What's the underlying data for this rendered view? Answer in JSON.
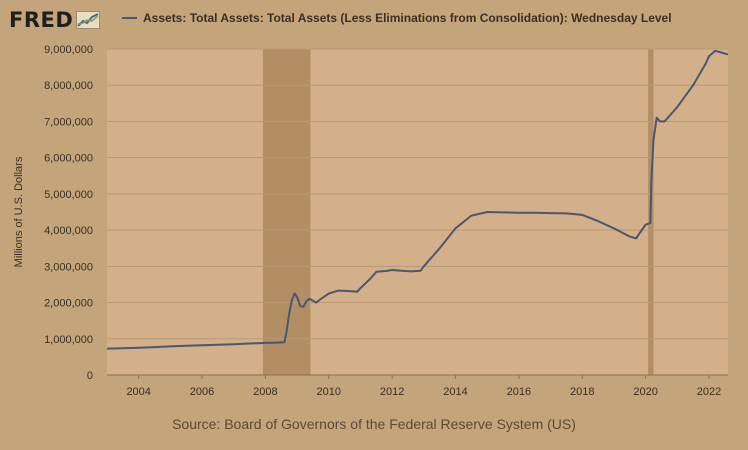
{
  "logo": {
    "text": "FRED",
    "icon": "trend-chart-icon"
  },
  "legend": {
    "label": "Assets: Total Assets: Total Assets (Less Eliminations from Consolidation): Wednesday Level"
  },
  "source": "Source: Board of Governors of the Federal Reserve System (US)",
  "colors": {
    "background": "#c4a47a",
    "plot_area": "#d3b08a",
    "recession": "#b38d63",
    "series": "#4a5770",
    "grid": "#b99a75"
  },
  "chart_data": {
    "type": "line",
    "title": "",
    "xlabel": "",
    "ylabel": "Millions of U.S. Dollars",
    "xlim": [
      2003.0,
      2022.6
    ],
    "ylim": [
      0,
      9000000
    ],
    "grid": true,
    "legend_position": "top",
    "y_ticks": [
      {
        "value": 0,
        "label": "0"
      },
      {
        "value": 1000000,
        "label": "1,000,000"
      },
      {
        "value": 2000000,
        "label": "2,000,000"
      },
      {
        "value": 3000000,
        "label": "3,000,000"
      },
      {
        "value": 4000000,
        "label": "4,000,000"
      },
      {
        "value": 5000000,
        "label": "5,000,000"
      },
      {
        "value": 6000000,
        "label": "6,000,000"
      },
      {
        "value": 7000000,
        "label": "7,000,000"
      },
      {
        "value": 8000000,
        "label": "8,000,000"
      },
      {
        "value": 9000000,
        "label": "9,000,000"
      }
    ],
    "x_ticks": [
      {
        "value": 2004,
        "label": "2004"
      },
      {
        "value": 2006,
        "label": "2006"
      },
      {
        "value": 2008,
        "label": "2008"
      },
      {
        "value": 2010,
        "label": "2010"
      },
      {
        "value": 2012,
        "label": "2012"
      },
      {
        "value": 2014,
        "label": "2014"
      },
      {
        "value": 2016,
        "label": "2016"
      },
      {
        "value": 2018,
        "label": "2018"
      },
      {
        "value": 2020,
        "label": "2020"
      },
      {
        "value": 2022,
        "label": "2022"
      }
    ],
    "recessions": [
      {
        "start": 2007.92,
        "end": 2009.42
      },
      {
        "start": 2020.08,
        "end": 2020.25
      }
    ],
    "series": [
      {
        "name": "Assets: Total Assets: Total Assets (Less Eliminations from Consolidation): Wednesday Level",
        "points": [
          [
            2003.0,
            730000
          ],
          [
            2003.5,
            740000
          ],
          [
            2004.0,
            755000
          ],
          [
            2004.5,
            770000
          ],
          [
            2005.0,
            790000
          ],
          [
            2005.5,
            805000
          ],
          [
            2006.0,
            820000
          ],
          [
            2006.5,
            835000
          ],
          [
            2007.0,
            850000
          ],
          [
            2007.5,
            870000
          ],
          [
            2008.0,
            885000
          ],
          [
            2008.3,
            890000
          ],
          [
            2008.6,
            905000
          ],
          [
            2008.67,
            1200000
          ],
          [
            2008.75,
            1700000
          ],
          [
            2008.83,
            2050000
          ],
          [
            2008.92,
            2250000
          ],
          [
            2009.0,
            2150000
          ],
          [
            2009.1,
            1900000
          ],
          [
            2009.2,
            1880000
          ],
          [
            2009.3,
            2050000
          ],
          [
            2009.4,
            2100000
          ],
          [
            2009.5,
            2050000
          ],
          [
            2009.6,
            2000000
          ],
          [
            2009.75,
            2100000
          ],
          [
            2010.0,
            2250000
          ],
          [
            2010.3,
            2330000
          ],
          [
            2010.6,
            2320000
          ],
          [
            2010.9,
            2300000
          ],
          [
            2011.0,
            2400000
          ],
          [
            2011.3,
            2650000
          ],
          [
            2011.5,
            2850000
          ],
          [
            2011.8,
            2870000
          ],
          [
            2012.0,
            2900000
          ],
          [
            2012.3,
            2880000
          ],
          [
            2012.6,
            2860000
          ],
          [
            2012.9,
            2880000
          ],
          [
            2013.0,
            3000000
          ],
          [
            2013.5,
            3500000
          ],
          [
            2014.0,
            4050000
          ],
          [
            2014.5,
            4400000
          ],
          [
            2015.0,
            4500000
          ],
          [
            2015.5,
            4490000
          ],
          [
            2016.0,
            4480000
          ],
          [
            2016.5,
            4480000
          ],
          [
            2017.0,
            4470000
          ],
          [
            2017.5,
            4460000
          ],
          [
            2018.0,
            4420000
          ],
          [
            2018.5,
            4250000
          ],
          [
            2019.0,
            4050000
          ],
          [
            2019.5,
            3820000
          ],
          [
            2019.7,
            3770000
          ],
          [
            2019.8,
            3900000
          ],
          [
            2020.0,
            4150000
          ],
          [
            2020.15,
            4200000
          ],
          [
            2020.18,
            5300000
          ],
          [
            2020.25,
            6500000
          ],
          [
            2020.35,
            7100000
          ],
          [
            2020.45,
            7000000
          ],
          [
            2020.6,
            7000000
          ],
          [
            2020.9,
            7300000
          ],
          [
            2021.0,
            7400000
          ],
          [
            2021.5,
            8000000
          ],
          [
            2021.9,
            8600000
          ],
          [
            2022.0,
            8800000
          ],
          [
            2022.2,
            8950000
          ],
          [
            2022.4,
            8900000
          ],
          [
            2022.6,
            8850000
          ]
        ]
      }
    ]
  }
}
